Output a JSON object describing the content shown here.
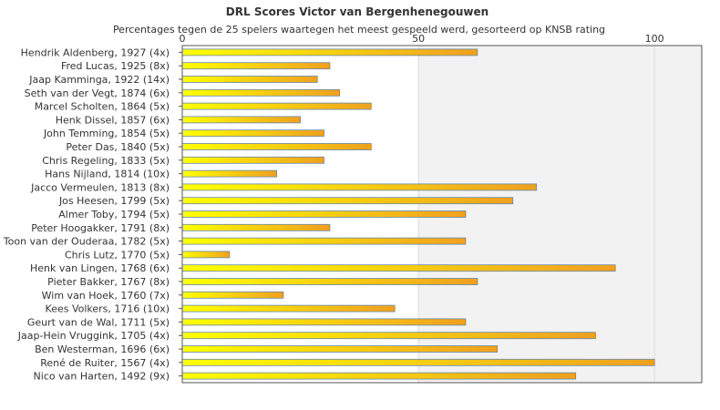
{
  "chart_data": {
    "type": "bar",
    "orientation": "horizontal",
    "title": "DRL Scores Victor van Bergenhenegouwen",
    "subtitle": "Percentages tegen de 25 spelers waartegen het meest gespeeld werd, gesorteerd op KNSB rating",
    "xlim": [
      0,
      110
    ],
    "xticks": [
      "0",
      "50",
      "100"
    ],
    "xtick_values": [
      0,
      50,
      100
    ],
    "grid": true,
    "axis_position": "top",
    "colors": {
      "bar_left": "#ffff00",
      "bar_right": "#f0a020",
      "bar_stroke": "#6688aa",
      "shade": "#f2f2f2",
      "grid": "#dddddd"
    },
    "categories": [
      "Hendrik Aldenberg, 1927 (4x)",
      "Fred Lucas, 1925 (8x)",
      "Jaap Kamminga, 1922 (14x)",
      "Seth van der Vegt, 1874 (6x)",
      "Marcel Scholten, 1864 (5x)",
      "Henk Dissel, 1857 (6x)",
      "John Temming, 1854 (5x)",
      "Peter Das, 1840 (5x)",
      "Chris Regeling, 1833 (5x)",
      "Hans Nijland, 1814 (10x)",
      "Jacco Vermeulen, 1813 (8x)",
      "Jos Heesen, 1799 (5x)",
      "Almer Toby, 1794 (5x)",
      "Peter Hoogakker, 1791 (8x)",
      "Toon van der Ouderaa, 1782 (5x)",
      "Chris Lutz, 1770 (5x)",
      "Henk van Lingen, 1768 (6x)",
      "Pieter Bakker, 1767 (8x)",
      "Wim van Hoek, 1760 (7x)",
      "Kees Volkers, 1716 (10x)",
      "Geurt van de Wal, 1711 (5x)",
      "Jaap-Hein Vruggink, 1705 (4x)",
      "Ben Westerman, 1696 (6x)",
      "René de Ruiter, 1567 (4x)",
      "Nico van Harten, 1492 (9x)"
    ],
    "values": [
      62.5,
      31.25,
      28.6,
      33.3,
      40,
      25,
      30,
      40,
      30,
      20,
      75,
      70,
      60,
      31.25,
      60,
      10,
      91.7,
      62.5,
      21.4,
      45,
      60,
      87.5,
      66.7,
      100,
      83.3
    ]
  }
}
